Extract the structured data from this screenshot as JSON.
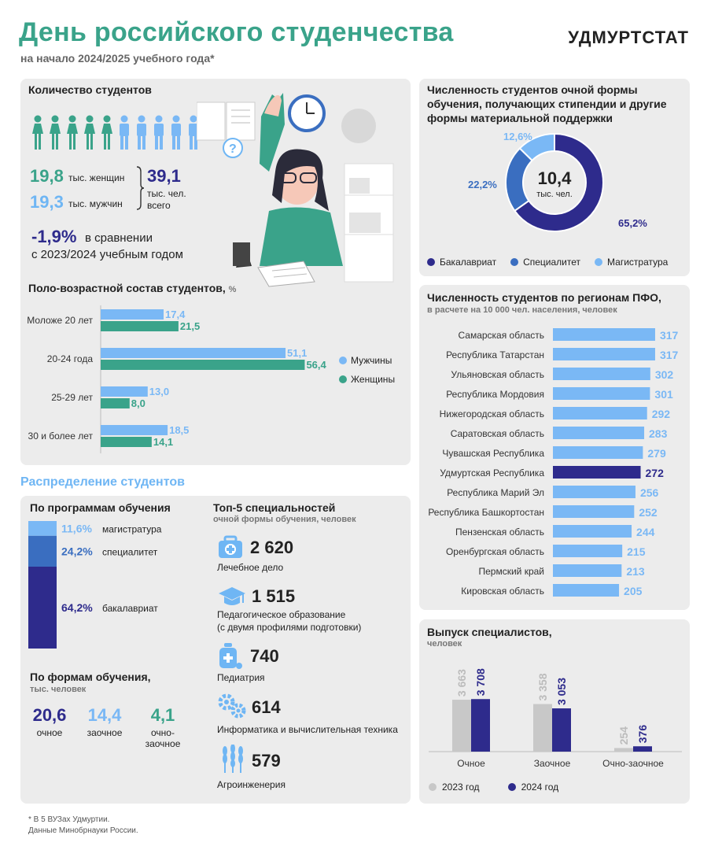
{
  "header": {
    "title": "День российского студенчества",
    "subtitle": "на начало 2024/2025 учебного года*",
    "brand": "УДМУРТСТАТ"
  },
  "count": {
    "title": "Количество студентов",
    "women_value": "19,8",
    "women_label": "тыс. женщин",
    "men_value": "19,3",
    "men_label": "тыс. мужчин",
    "total_value": "39,1",
    "total_label1": "тыс. чел.",
    "total_label2": "всего",
    "change_value": "-1,9%",
    "change_text1": "в сравнении",
    "change_text2": "с 2023/2024 учебным годом"
  },
  "age": {
    "title": "Поло-возрастной состав студентов,",
    "unit": "%",
    "legend_men": "Мужчины",
    "legend_women": "Женщины",
    "colors": {
      "men": "#7ab8f5",
      "women": "#3aa38a"
    }
  },
  "stipend": {
    "title1": "Численность студентов очной формы",
    "title2": "обучения, получающих стипендии и другие",
    "title3": "формы материальной поддержки",
    "center_value": "10,4",
    "center_label": "тыс. чел.",
    "label_bak": "65,2%",
    "label_spec": "22,2%",
    "label_mag": "12,6%",
    "legend_bak": "Бакалавриат",
    "legend_spec": "Специалитет",
    "legend_mag": "Магистратура"
  },
  "regions": {
    "title": "Численность студентов по регионам ПФО,",
    "subtitle": "в расчете на 10 000 чел. населения, человек",
    "highlight_color": "#2e2b8c",
    "bar_color": "#7ab8f5"
  },
  "distribution": {
    "title": "Распределение студентов",
    "programs_title": "По программам обучения",
    "programs": [
      {
        "pct": "11,6%",
        "label": "магистратура"
      },
      {
        "pct": "24,2%",
        "label": "специалитет"
      },
      {
        "pct": "64,2%",
        "label": "бакалавриат"
      }
    ],
    "forms_title": "По формам обучения,",
    "forms_sub": "тыс. человек",
    "forms": [
      {
        "value": "20,6",
        "label1": "очное",
        "label2": ""
      },
      {
        "value": "14,4",
        "label1": "заочное",
        "label2": ""
      },
      {
        "value": "4,1",
        "label1": "очно-",
        "label2": "заочное"
      }
    ],
    "top_title": "Топ-5 специальностей",
    "top_sub": "очной формы обучения, человек",
    "top": [
      {
        "value": "2 620",
        "label1": "Лечебное дело",
        "label2": "",
        "icon": "medkit-icon"
      },
      {
        "value": "1 515",
        "label1": "Педагогическое образование",
        "label2": "(с двумя профилями подготовки)",
        "icon": "graduation-cap-icon"
      },
      {
        "value": "740",
        "label1": "Педиатрия",
        "label2": "",
        "icon": "baby-bottle-icon"
      },
      {
        "value": "614",
        "label1": "Информатика и вычислительная техника",
        "label2": "",
        "icon": "gears-icon"
      },
      {
        "value": "579",
        "label1": "Агроинженерия",
        "label2": "",
        "icon": "wheat-icon"
      }
    ]
  },
  "grads": {
    "title": "Выпуск специалистов,",
    "subtitle": "человек",
    "legend_2023": "2023 год",
    "legend_2024": "2024 год",
    "colors": {
      "y2023": "#c8c8c8",
      "y2024": "#2e2b8c"
    }
  },
  "footer": {
    "line1": "* В 5 ВУЗах Удмуртии.",
    "line2": "Данные Минобрнауки России."
  },
  "chart_data": [
    {
      "type": "bar",
      "title": "Поло-возрастной состав студентов, %",
      "categories": [
        "Моложе 20 лет",
        "20-24 года",
        "25-29 лет",
        "30 и более лет"
      ],
      "series": [
        {
          "name": "Мужчины",
          "values": [
            17.4,
            51.1,
            13.0,
            18.5
          ],
          "labels": [
            "17,4",
            "51,1",
            "13,0",
            "18,5"
          ]
        },
        {
          "name": "Женщины",
          "values": [
            21.5,
            56.4,
            8.0,
            14.1
          ],
          "labels": [
            "21,5",
            "56,4",
            "8,0",
            "14,1"
          ]
        }
      ]
    },
    {
      "type": "pie",
      "title": "Численность студентов очной формы обучения, получающих стипендии и другие формы материальной поддержки",
      "categories": [
        "Бакалавриат",
        "Специалитет",
        "Магистратура"
      ],
      "values": [
        65.2,
        22.2,
        12.6
      ],
      "colors": [
        "#2e2b8c",
        "#3a6ec0",
        "#7ab8f5"
      ]
    },
    {
      "type": "bar",
      "title": "Численность студентов по регионам ПФО, в расчете на 10 000 чел. населения, человек",
      "categories": [
        "Самарская область",
        "Республика Татарстан",
        "Ульяновская область",
        "Республика Мордовия",
        "Нижегородская область",
        "Саратовская область",
        "Чувашская Республика",
        "Удмуртская Республика",
        "Республика Марий Эл",
        "Республика Башкортостан",
        "Пензенская область",
        "Оренбургская область",
        "Пермский край",
        "Кировская область"
      ],
      "values": [
        317,
        317,
        302,
        301,
        292,
        283,
        279,
        272,
        256,
        252,
        244,
        215,
        213,
        205
      ],
      "highlight": "Удмуртская Республика"
    },
    {
      "type": "bar",
      "title": "Выпуск специалистов, человек",
      "categories": [
        "Очное",
        "Заочное",
        "Очно-заочное"
      ],
      "series": [
        {
          "name": "2023 год",
          "values": [
            3663,
            3358,
            254
          ],
          "labels": [
            "3 663",
            "3 358",
            "254"
          ]
        },
        {
          "name": "2024 год",
          "values": [
            3708,
            3053,
            376
          ],
          "labels": [
            "3 708",
            "3 053",
            "376"
          ]
        }
      ]
    },
    {
      "type": "bar",
      "title": "По программам обучения",
      "categories": [
        "магистратура",
        "специалитет",
        "бакалавриат"
      ],
      "values": [
        11.6,
        24.2,
        64.2
      ],
      "colors": [
        "#7ab8f5",
        "#3a6ec0",
        "#2e2b8c"
      ]
    }
  ]
}
